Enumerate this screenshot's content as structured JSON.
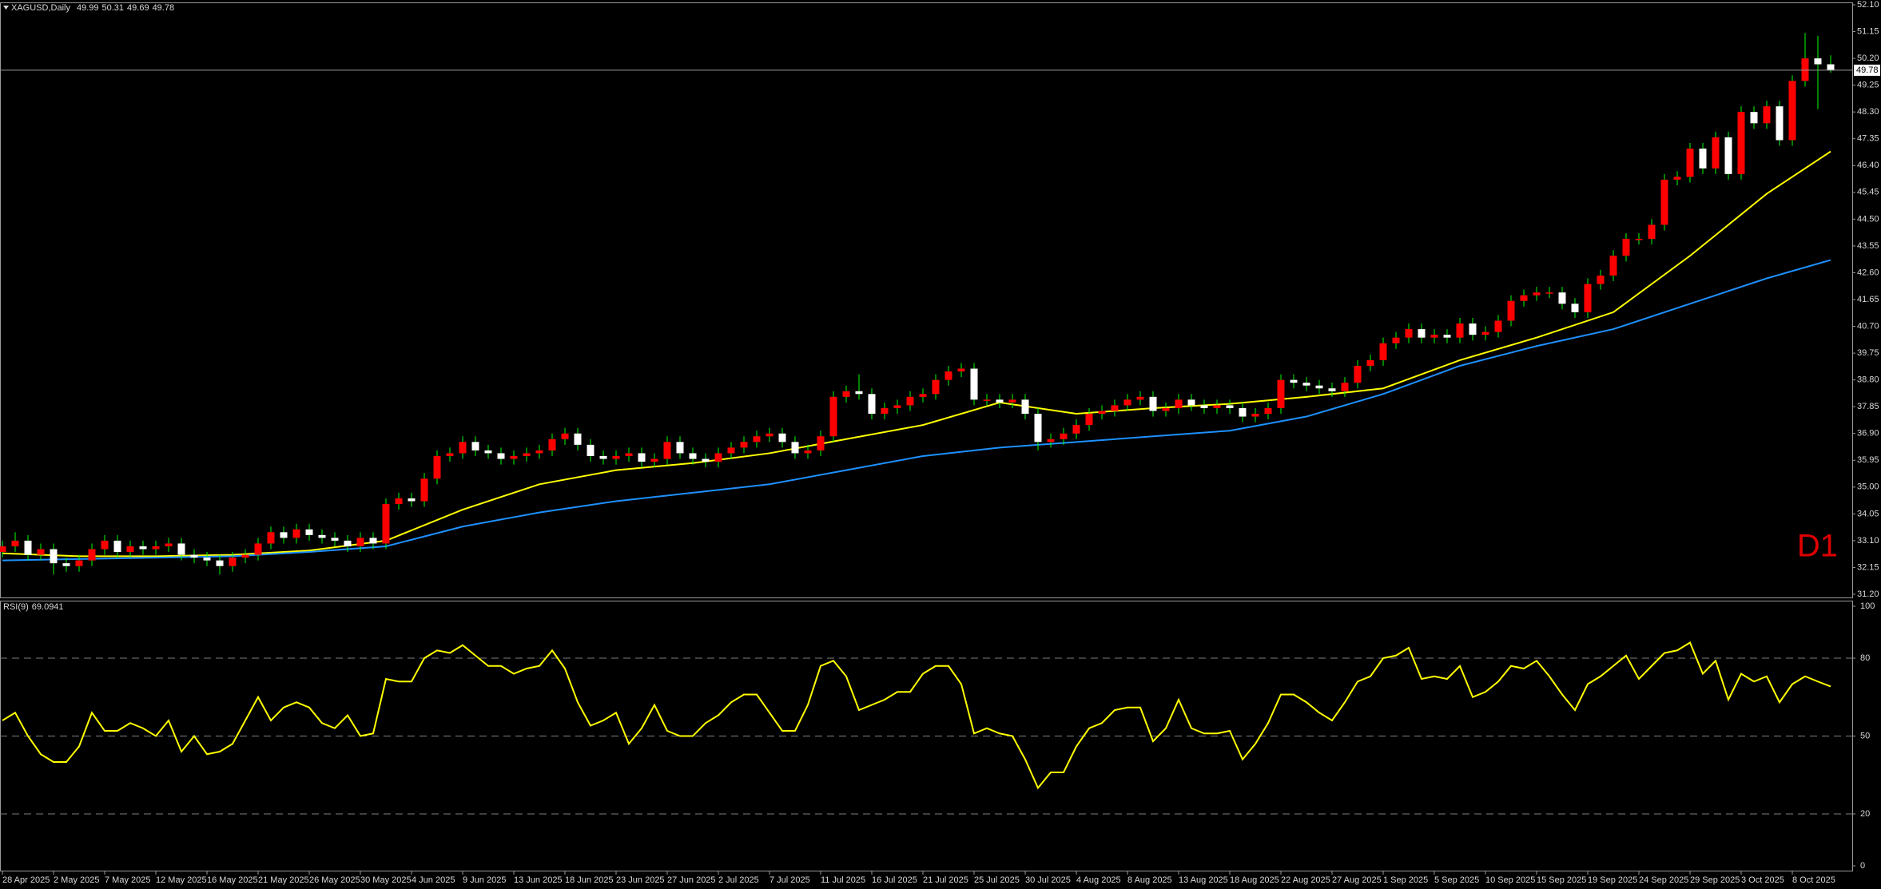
{
  "chart_data": [
    {
      "type": "candlestick",
      "title": "XAGUSD,Daily",
      "annotation": "D1",
      "categories": [
        "28 Apr 2025",
        null,
        null,
        null,
        "2 May 2025",
        null,
        null,
        null,
        "7 May 2025",
        null,
        null,
        null,
        "12 May 2025",
        null,
        null,
        null,
        "16 May 2025",
        null,
        null,
        null,
        "21 May 2025",
        null,
        null,
        null,
        "26 May 2025",
        null,
        null,
        null,
        "30 May 2025",
        null,
        null,
        null,
        "4 Jun 2025",
        null,
        null,
        null,
        "9 Jun 2025",
        null,
        null,
        null,
        "13 Jun 2025",
        null,
        null,
        null,
        "18 Jun 2025",
        null,
        null,
        null,
        "23 Jun 2025",
        null,
        null,
        null,
        "27 Jun 2025",
        null,
        null,
        null,
        "2 Jul 2025",
        null,
        null,
        null,
        "7 Jul 2025",
        null,
        null,
        null,
        "11 Jul 2025",
        null,
        null,
        null,
        "16 Jul 2025",
        null,
        null,
        null,
        "21 Jul 2025",
        null,
        null,
        null,
        "25 Jul 2025",
        null,
        null,
        null,
        "30 Jul 2025",
        null,
        null,
        null,
        "4 Aug 2025",
        null,
        null,
        null,
        "8 Aug 2025",
        null,
        null,
        null,
        "13 Aug 2025",
        null,
        null,
        null,
        "18 Aug 2025",
        null,
        null,
        null,
        "22 Aug 2025",
        null,
        null,
        null,
        "27 Aug 2025",
        null,
        null,
        null,
        "1 Sep 2025",
        null,
        null,
        null,
        "5 Sep 2025",
        null,
        null,
        null,
        "10 Sep 2025",
        null,
        null,
        null,
        "15 Sep 2025",
        null,
        null,
        null,
        "19 Sep 2025",
        null,
        null,
        null,
        "24 Sep 2025",
        null,
        null,
        null,
        "29 Sep 2025",
        null,
        null,
        null,
        "3 Oct 2025",
        null,
        null,
        null,
        "8 Oct 2025",
        null,
        null,
        null
      ],
      "open": [
        32.7,
        32.9,
        33.1,
        32.6,
        32.8,
        32.3,
        32.2,
        32.4,
        32.8,
        33.1,
        32.7,
        32.9,
        32.8,
        32.9,
        33.0,
        32.6,
        32.5,
        32.4,
        32.2,
        32.5,
        32.6,
        33.0,
        33.4,
        33.2,
        33.5,
        33.3,
        33.2,
        33.1,
        32.9,
        33.2,
        33.0,
        34.4,
        34.6,
        34.5,
        35.3,
        36.1,
        36.2,
        36.6,
        36.3,
        36.2,
        36.0,
        36.1,
        36.2,
        36.3,
        36.7,
        36.9,
        36.5,
        36.1,
        36.0,
        36.1,
        36.2,
        35.9,
        36.0,
        36.6,
        36.2,
        36.0,
        35.9,
        36.2,
        36.4,
        36.6,
        36.8,
        36.9,
        36.6,
        36.2,
        36.3,
        36.8,
        38.2,
        38.4,
        38.3,
        37.6,
        37.8,
        37.9,
        38.2,
        38.3,
        38.8,
        39.1,
        39.2,
        38.1,
        38.1,
        38.0,
        38.1,
        37.6,
        36.6,
        36.7,
        36.9,
        37.2,
        37.6,
        37.7,
        37.9,
        38.1,
        38.2,
        37.7,
        37.8,
        38.1,
        37.9,
        37.8,
        37.9,
        37.8,
        37.5,
        37.6,
        37.8,
        38.8,
        38.7,
        38.6,
        38.5,
        38.4,
        38.7,
        39.3,
        39.5,
        40.1,
        40.3,
        40.6,
        40.3,
        40.4,
        40.3,
        40.8,
        40.4,
        40.5,
        40.9,
        41.6,
        41.8,
        41.9,
        41.9,
        41.5,
        41.2,
        42.2,
        42.5,
        43.2,
        43.8,
        43.8,
        44.3,
        45.9,
        46.0,
        47.0,
        46.3,
        47.4,
        46.1,
        48.3,
        47.9,
        48.5,
        47.3,
        49.4,
        50.2,
        49.99
      ],
      "high": [
        33.1,
        33.4,
        33.3,
        33.0,
        33.0,
        32.5,
        32.6,
        33.0,
        33.3,
        33.3,
        33.1,
        33.1,
        33.1,
        33.2,
        33.2,
        32.8,
        32.7,
        32.6,
        32.7,
        32.8,
        33.2,
        33.6,
        33.6,
        33.7,
        33.7,
        33.5,
        33.4,
        33.3,
        33.4,
        33.4,
        34.6,
        34.8,
        34.8,
        35.5,
        36.3,
        36.4,
        36.8,
        36.8,
        36.5,
        36.4,
        36.3,
        36.4,
        36.5,
        36.9,
        37.1,
        37.1,
        36.7,
        36.3,
        36.3,
        36.4,
        36.4,
        36.2,
        36.8,
        36.8,
        36.4,
        36.2,
        36.4,
        36.6,
        36.8,
        37.0,
        37.1,
        37.1,
        36.8,
        36.5,
        37.0,
        38.4,
        38.6,
        39.0,
        38.5,
        38.0,
        38.1,
        38.4,
        38.5,
        39.0,
        39.3,
        39.4,
        39.4,
        38.3,
        38.3,
        38.3,
        38.3,
        37.8,
        36.9,
        37.1,
        37.4,
        37.8,
        37.9,
        38.1,
        38.3,
        38.4,
        38.4,
        38.0,
        38.3,
        38.3,
        38.1,
        38.1,
        38.1,
        38.0,
        37.8,
        38.0,
        39.0,
        39.0,
        38.9,
        38.8,
        38.7,
        38.9,
        39.5,
        39.7,
        40.3,
        40.5,
        40.8,
        40.8,
        40.6,
        40.6,
        41.0,
        41.0,
        40.7,
        41.1,
        41.8,
        42.0,
        42.1,
        42.1,
        42.1,
        41.7,
        42.4,
        42.7,
        43.4,
        44.0,
        44.0,
        44.5,
        46.1,
        46.2,
        47.2,
        47.2,
        47.6,
        47.6,
        48.5,
        48.5,
        48.7,
        48.7,
        49.6,
        51.1,
        51.0,
        50.31
      ],
      "low": [
        32.5,
        32.7,
        32.4,
        32.4,
        31.9,
        32.0,
        32.0,
        32.2,
        32.6,
        32.5,
        32.5,
        32.6,
        32.6,
        32.7,
        32.4,
        32.3,
        32.2,
        31.9,
        32.0,
        32.3,
        32.4,
        32.8,
        33.0,
        33.0,
        33.1,
        33.0,
        32.9,
        32.7,
        32.7,
        32.8,
        32.8,
        34.2,
        34.3,
        34.3,
        35.1,
        35.9,
        36.0,
        36.1,
        36.0,
        35.8,
        35.8,
        35.9,
        36.0,
        36.1,
        36.5,
        36.3,
        35.9,
        35.8,
        35.8,
        35.9,
        35.7,
        35.7,
        35.8,
        36.0,
        35.8,
        35.7,
        35.7,
        36.0,
        36.2,
        36.4,
        36.6,
        36.4,
        36.0,
        36.0,
        36.1,
        36.6,
        38.0,
        38.1,
        37.4,
        37.4,
        37.6,
        37.7,
        38.0,
        38.1,
        38.6,
        38.9,
        37.9,
        37.9,
        37.8,
        37.8,
        37.4,
        36.3,
        36.4,
        36.5,
        36.7,
        37.0,
        37.4,
        37.5,
        37.7,
        37.9,
        37.5,
        37.5,
        37.6,
        37.7,
        37.6,
        37.6,
        37.6,
        37.3,
        37.3,
        37.4,
        37.6,
        38.5,
        38.4,
        38.3,
        38.2,
        38.2,
        38.5,
        39.1,
        39.3,
        39.9,
        40.1,
        40.1,
        40.1,
        40.1,
        40.1,
        40.2,
        40.2,
        40.3,
        40.7,
        41.4,
        41.6,
        41.7,
        41.3,
        41.0,
        41.0,
        42.0,
        42.3,
        43.0,
        43.6,
        43.6,
        44.1,
        45.7,
        45.8,
        46.1,
        46.1,
        45.9,
        45.9,
        47.7,
        47.7,
        47.1,
        47.1,
        49.2,
        48.4,
        49.69
      ],
      "close": [
        32.9,
        33.1,
        32.6,
        32.8,
        32.3,
        32.2,
        32.4,
        32.8,
        33.1,
        32.7,
        32.9,
        32.8,
        32.9,
        33.0,
        32.6,
        32.5,
        32.4,
        32.2,
        32.5,
        32.6,
        33.0,
        33.4,
        33.2,
        33.5,
        33.3,
        33.2,
        33.1,
        32.9,
        33.2,
        33.0,
        34.4,
        34.6,
        34.5,
        35.3,
        36.1,
        36.2,
        36.6,
        36.3,
        36.2,
        36.0,
        36.1,
        36.2,
        36.3,
        36.7,
        36.9,
        36.5,
        36.1,
        36.0,
        36.1,
        36.2,
        35.9,
        36.0,
        36.6,
        36.2,
        36.0,
        35.9,
        36.2,
        36.4,
        36.6,
        36.8,
        36.9,
        36.6,
        36.2,
        36.3,
        36.8,
        38.2,
        38.4,
        38.3,
        37.6,
        37.8,
        37.9,
        38.2,
        38.3,
        38.8,
        39.1,
        39.2,
        38.1,
        38.1,
        38.0,
        38.1,
        37.6,
        36.6,
        36.7,
        36.9,
        37.2,
        37.6,
        37.7,
        37.9,
        38.1,
        38.2,
        37.7,
        37.8,
        38.1,
        37.9,
        37.8,
        37.9,
        37.8,
        37.5,
        37.6,
        37.8,
        38.8,
        38.7,
        38.6,
        38.5,
        38.4,
        38.7,
        39.3,
        39.5,
        40.1,
        40.3,
        40.6,
        40.3,
        40.4,
        40.3,
        40.8,
        40.4,
        40.5,
        40.9,
        41.6,
        41.8,
        41.9,
        41.9,
        41.5,
        41.2,
        42.2,
        42.5,
        43.2,
        43.8,
        43.8,
        44.3,
        45.9,
        46.0,
        47.0,
        46.3,
        47.4,
        46.1,
        48.3,
        47.9,
        48.5,
        47.3,
        49.4,
        50.2,
        49.99,
        49.78
      ],
      "up_color": "#ff0000",
      "down_color": "#ffffff",
      "wick_color": "#00ff00",
      "overlays": [
        {
          "color": "#ffff00",
          "x": [
            0,
            6,
            12,
            18,
            24,
            30,
            36,
            42,
            48,
            54,
            60,
            66,
            72,
            78,
            84,
            90,
            96,
            102,
            108,
            114,
            120,
            126,
            132,
            138,
            143
          ],
          "values": [
            32.65,
            32.55,
            32.55,
            32.6,
            32.75,
            33.1,
            34.2,
            35.1,
            35.6,
            35.85,
            36.2,
            36.7,
            37.2,
            38.0,
            37.6,
            37.8,
            37.95,
            38.2,
            38.5,
            39.5,
            40.3,
            41.2,
            43.2,
            45.4,
            46.9
          ]
        },
        {
          "color": "#1e90ff",
          "x": [
            0,
            6,
            12,
            18,
            24,
            30,
            36,
            42,
            48,
            54,
            60,
            66,
            72,
            78,
            84,
            90,
            96,
            102,
            108,
            114,
            120,
            126,
            132,
            138,
            143
          ],
          "values": [
            32.4,
            32.45,
            32.5,
            32.55,
            32.7,
            32.9,
            33.6,
            34.1,
            34.5,
            34.8,
            35.1,
            35.6,
            36.1,
            36.4,
            36.6,
            36.8,
            37.0,
            37.5,
            38.3,
            39.3,
            40.0,
            40.6,
            41.5,
            42.4,
            43.05
          ]
        }
      ],
      "ylim": [
        31.2,
        52.1
      ],
      "yticks": [
        {
          "value": 31.2,
          "label": "31.20"
        },
        {
          "value": 32.15,
          "label": "32.15"
        },
        {
          "value": 33.1,
          "label": "33.10"
        },
        {
          "value": 34.05,
          "label": "34.05"
        },
        {
          "value": 35,
          "label": "35.00"
        },
        {
          "value": 35.95,
          "label": "35.95"
        },
        {
          "value": 36.9,
          "label": "36.90"
        },
        {
          "value": 37.85,
          "label": "37.85"
        },
        {
          "value": 38.8,
          "label": "38.80"
        },
        {
          "value": 39.75,
          "label": "39.75"
        },
        {
          "value": 40.7,
          "label": "40.70"
        },
        {
          "value": 41.65,
          "label": "41.65"
        },
        {
          "value": 42.6,
          "label": "42.60"
        },
        {
          "value": 43.55,
          "label": "43.55"
        },
        {
          "value": 44.5,
          "label": "44.50"
        },
        {
          "value": 45.45,
          "label": "45.45"
        },
        {
          "value": 46.4,
          "label": "46.40"
        },
        {
          "value": 47.35,
          "label": "47.35"
        },
        {
          "value": 48.3,
          "label": "48.30"
        },
        {
          "value": 49.25,
          "label": "49.25"
        },
        {
          "value": 50.2,
          "label": "50.20"
        },
        {
          "value": 51.15,
          "label": "51.15"
        },
        {
          "value": 52.1,
          "label": "52.10"
        }
      ],
      "grid": false
    },
    {
      "type": "line",
      "title": "RSI(9)",
      "color": "#ffff00",
      "values": [
        56,
        59,
        50,
        43,
        40,
        40,
        46,
        59,
        52,
        52,
        55,
        53,
        50,
        56,
        44,
        50,
        43,
        44,
        47,
        56,
        65,
        56,
        61,
        63,
        61,
        55,
        53,
        58,
        50,
        51,
        72,
        71,
        71,
        80,
        83,
        82,
        85,
        81,
        77,
        77,
        74,
        76,
        77,
        83,
        76,
        63,
        54,
        56,
        59,
        47,
        53,
        62,
        52,
        50,
        50,
        55,
        58,
        63,
        66,
        66,
        59,
        52,
        52,
        62,
        77,
        79,
        73,
        60,
        62,
        64,
        67,
        67,
        74,
        77,
        77,
        70,
        51,
        53,
        51,
        50,
        41,
        30,
        36,
        36,
        46,
        53,
        55,
        60,
        61,
        61,
        48,
        53,
        64,
        53,
        51,
        51,
        52,
        41,
        47,
        55,
        66,
        66,
        63,
        59,
        56,
        63,
        71,
        73,
        80,
        81,
        84,
        72,
        73,
        72,
        77,
        65,
        67,
        71,
        77,
        76,
        79,
        73,
        66,
        60,
        70,
        73,
        77,
        81,
        72,
        77,
        82,
        83,
        86,
        74,
        79,
        64,
        74,
        71,
        73,
        63,
        70,
        73,
        71,
        69.0941
      ],
      "ylim": [
        0,
        100
      ],
      "yticks": [
        0,
        20,
        50,
        80,
        100
      ],
      "levels": [
        20,
        50,
        80
      ],
      "level_color": "#808080",
      "grid": false
    }
  ]
}
